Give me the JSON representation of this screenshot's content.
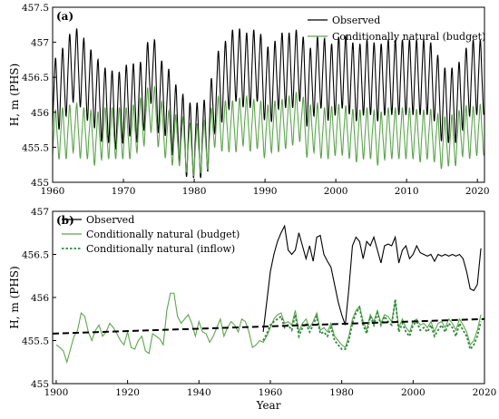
{
  "chart_data": [
    {
      "panel_label": "(a)",
      "type": "line",
      "xlabel": "",
      "ylabel": "H, m (PHS)",
      "xlim": [
        1960,
        2021
      ],
      "ylim": [
        455,
        457.5
      ],
      "xticks": [
        1960,
        1970,
        1980,
        1990,
        2000,
        2010,
        2020
      ],
      "yticks": [
        455,
        455.5,
        456,
        456.5,
        457,
        457.5
      ],
      "ytick_labels": [
        "455",
        "455.5",
        "456",
        "456.5",
        "457",
        "457.5"
      ],
      "legend_position": "top-right",
      "series": [
        {
          "name": "Observed",
          "color": "#000000",
          "seasonal_amplitude": 0.5,
          "annual_mean": [
            [
              1960,
              456.2
            ],
            [
              1961,
              456.3
            ],
            [
              1962,
              456.5
            ],
            [
              1963,
              456.7
            ],
            [
              1964,
              456.6
            ],
            [
              1965,
              456.4
            ],
            [
              1966,
              456.3
            ],
            [
              1967,
              456.1
            ],
            [
              1968,
              456.1
            ],
            [
              1969,
              456.0
            ],
            [
              1970,
              456.1
            ],
            [
              1971,
              456.2
            ],
            [
              1972,
              456.1
            ],
            [
              1973,
              456.3
            ],
            [
              1974,
              456.7
            ],
            [
              1975,
              456.2
            ],
            [
              1976,
              456.2
            ],
            [
              1977,
              455.9
            ],
            [
              1978,
              455.8
            ],
            [
              1979,
              455.6
            ],
            [
              1980,
              455.6
            ],
            [
              1981,
              455.6
            ],
            [
              1982,
              455.7
            ],
            [
              1983,
              456.3
            ],
            [
              1984,
              456.4
            ],
            [
              1985,
              456.6
            ],
            [
              1986,
              456.7
            ],
            [
              1987,
              456.6
            ],
            [
              1988,
              456.6
            ],
            [
              1989,
              456.7
            ],
            [
              1990,
              456.4
            ],
            [
              1991,
              456.4
            ],
            [
              1992,
              456.6
            ],
            [
              1993,
              456.6
            ],
            [
              1994,
              456.6
            ],
            [
              1995,
              456.7
            ],
            [
              1996,
              456.3
            ],
            [
              1997,
              456.5
            ],
            [
              1998,
              456.6
            ],
            [
              1999,
              456.4
            ],
            [
              2000,
              456.5
            ],
            [
              2001,
              456.6
            ],
            [
              2002,
              456.5
            ],
            [
              2003,
              456.4
            ],
            [
              2004,
              456.5
            ],
            [
              2005,
              456.5
            ],
            [
              2006,
              456.4
            ],
            [
              2007,
              456.5
            ],
            [
              2008,
              456.5
            ],
            [
              2009,
              456.5
            ],
            [
              2010,
              456.5
            ],
            [
              2011,
              456.5
            ],
            [
              2012,
              456.5
            ],
            [
              2013,
              456.5
            ],
            [
              2014,
              456.4
            ],
            [
              2015,
              456.1
            ],
            [
              2016,
              456.1
            ],
            [
              2017,
              456.1
            ],
            [
              2018,
              456.3
            ],
            [
              2019,
              456.5
            ],
            [
              2020,
              456.5
            ]
          ]
        },
        {
          "name": "Conditionally natural (budget)",
          "color": "#5aa84a",
          "seasonal_amplitude": 0.33,
          "annual_mean": [
            [
              1960,
              455.65
            ],
            [
              1961,
              455.7
            ],
            [
              1962,
              455.7
            ],
            [
              1963,
              455.8
            ],
            [
              1964,
              455.7
            ],
            [
              1965,
              455.7
            ],
            [
              1966,
              455.6
            ],
            [
              1967,
              455.7
            ],
            [
              1968,
              455.7
            ],
            [
              1969,
              455.7
            ],
            [
              1970,
              455.7
            ],
            [
              1971,
              455.7
            ],
            [
              1972,
              455.8
            ],
            [
              1973,
              455.9
            ],
            [
              1974,
              456.1
            ],
            [
              1975,
              455.85
            ],
            [
              1976,
              455.7
            ],
            [
              1977,
              455.6
            ],
            [
              1978,
              455.6
            ],
            [
              1979,
              455.5
            ],
            [
              1980,
              455.45
            ],
            [
              1981,
              455.5
            ],
            [
              1982,
              455.55
            ],
            [
              1983,
              455.9
            ],
            [
              1984,
              455.8
            ],
            [
              1985,
              455.8
            ],
            [
              1986,
              455.8
            ],
            [
              1987,
              455.9
            ],
            [
              1988,
              455.8
            ],
            [
              1989,
              455.85
            ],
            [
              1990,
              455.7
            ],
            [
              1991,
              455.8
            ],
            [
              1992,
              455.8
            ],
            [
              1993,
              455.85
            ],
            [
              1994,
              455.9
            ],
            [
              1995,
              455.95
            ],
            [
              1996,
              455.7
            ],
            [
              1997,
              455.8
            ],
            [
              1998,
              455.7
            ],
            [
              1999,
              455.7
            ],
            [
              2000,
              455.75
            ],
            [
              2001,
              455.75
            ],
            [
              2002,
              455.7
            ],
            [
              2003,
              455.65
            ],
            [
              2004,
              455.7
            ],
            [
              2005,
              455.7
            ],
            [
              2006,
              455.6
            ],
            [
              2007,
              455.7
            ],
            [
              2008,
              455.7
            ],
            [
              2009,
              455.7
            ],
            [
              2010,
              455.7
            ],
            [
              2011,
              455.7
            ],
            [
              2012,
              455.65
            ],
            [
              2013,
              455.7
            ],
            [
              2014,
              455.65
            ],
            [
              2015,
              455.55
            ],
            [
              2016,
              455.6
            ],
            [
              2017,
              455.6
            ],
            [
              2018,
              455.75
            ],
            [
              2019,
              455.7
            ],
            [
              2020,
              455.75
            ]
          ]
        }
      ]
    },
    {
      "panel_label": "(b)",
      "type": "line",
      "xlabel": "Year",
      "ylabel": "H, m (PHS)",
      "xlim": [
        1899,
        2020
      ],
      "ylim": [
        455,
        457
      ],
      "xticks": [
        1900,
        1920,
        1940,
        1960,
        1980,
        2000,
        2020
      ],
      "yticks": [
        455,
        455.5,
        456,
        456.5,
        457
      ],
      "ytick_labels": [
        "455",
        "455.5",
        "456",
        "456.5",
        "457"
      ],
      "legend_position": "top-left",
      "series": [
        {
          "name": "Observed",
          "color": "#000000",
          "x": [
            1958,
            1959,
            1960,
            1961,
            1962,
            1963,
            1964,
            1965,
            1966,
            1967,
            1968,
            1969,
            1970,
            1971,
            1972,
            1973,
            1974,
            1975,
            1976,
            1977,
            1978,
            1979,
            1980,
            1981,
            1982,
            1983,
            1984,
            1985,
            1986,
            1987,
            1988,
            1989,
            1990,
            1991,
            1992,
            1993,
            1994,
            1995,
            1996,
            1997,
            1998,
            1999,
            2000,
            2001,
            2002,
            2003,
            2004,
            2005,
            2006,
            2007,
            2008,
            2009,
            2010,
            2011,
            2012,
            2013,
            2014,
            2015,
            2016,
            2017,
            2018,
            2019
          ],
          "y": [
            455.6,
            455.95,
            456.3,
            456.5,
            456.65,
            456.75,
            456.83,
            456.55,
            456.5,
            456.55,
            456.75,
            456.6,
            456.45,
            456.6,
            456.42,
            456.7,
            456.72,
            456.5,
            456.42,
            456.35,
            456.15,
            455.95,
            455.8,
            455.68,
            456.1,
            456.6,
            456.7,
            456.65,
            456.45,
            456.65,
            456.6,
            456.7,
            456.55,
            456.4,
            456.6,
            456.62,
            456.6,
            456.7,
            456.4,
            456.55,
            456.6,
            456.45,
            456.5,
            456.6,
            456.52,
            456.5,
            456.48,
            456.5,
            456.42,
            456.5,
            456.48,
            456.5,
            456.48,
            456.5,
            456.48,
            456.5,
            456.45,
            456.3,
            456.1,
            456.08,
            456.15,
            456.57
          ]
        },
        {
          "name": "Conditionally natural (budget)",
          "color": "#5aa84a",
          "x": [
            1900,
            1901,
            1902,
            1903,
            1904,
            1905,
            1906,
            1907,
            1908,
            1909,
            1910,
            1911,
            1912,
            1913,
            1914,
            1915,
            1916,
            1917,
            1918,
            1919,
            1920,
            1921,
            1922,
            1923,
            1924,
            1925,
            1926,
            1927,
            1928,
            1929,
            1930,
            1931,
            1932,
            1933,
            1934,
            1935,
            1936,
            1937,
            1938,
            1939,
            1940,
            1941,
            1942,
            1943,
            1944,
            1945,
            1946,
            1947,
            1948,
            1949,
            1950,
            1951,
            1952,
            1953,
            1954,
            1955,
            1956,
            1957,
            1958,
            1959,
            1960,
            1961,
            1962,
            1963,
            1964,
            1965,
            1966,
            1967,
            1968,
            1969,
            1970,
            1971,
            1972,
            1973,
            1974,
            1975,
            1976,
            1977,
            1978,
            1979,
            1980,
            1981,
            1982,
            1983,
            1984,
            1985,
            1986,
            1987,
            1988,
            1989,
            1990,
            1991,
            1992,
            1993,
            1994,
            1995,
            1996,
            1997,
            1998,
            1999,
            2000,
            2001,
            2002,
            2003,
            2004,
            2005,
            2006,
            2007,
            2008,
            2009,
            2010,
            2011,
            2012,
            2013,
            2014,
            2015,
            2016,
            2017,
            2018,
            2019
          ],
          "y": [
            455.45,
            455.42,
            455.38,
            455.25,
            455.4,
            455.55,
            455.62,
            455.82,
            455.78,
            455.6,
            455.5,
            455.62,
            455.68,
            455.55,
            455.6,
            455.7,
            455.65,
            455.58,
            455.5,
            455.45,
            455.6,
            455.42,
            455.4,
            455.5,
            455.55,
            455.38,
            455.35,
            455.58,
            455.55,
            455.52,
            455.45,
            455.85,
            456.05,
            456.05,
            455.78,
            455.7,
            455.75,
            455.8,
            455.7,
            455.55,
            455.72,
            455.6,
            455.58,
            455.48,
            455.55,
            455.65,
            455.75,
            455.55,
            455.65,
            455.72,
            455.68,
            455.6,
            455.75,
            455.72,
            455.6,
            455.42,
            455.45,
            455.5,
            455.48,
            455.55,
            455.65,
            455.75,
            455.8,
            455.82,
            455.7,
            455.72,
            455.68,
            455.85,
            455.6,
            455.7,
            455.75,
            455.65,
            455.72,
            455.82,
            455.62,
            455.65,
            455.6,
            455.7,
            455.55,
            455.5,
            455.45,
            455.42,
            455.55,
            455.75,
            455.85,
            455.9,
            455.72,
            455.62,
            455.8,
            455.72,
            455.85,
            455.7,
            455.8,
            455.78,
            455.72,
            455.95,
            455.65,
            455.75,
            455.65,
            455.6,
            455.72,
            455.75,
            455.68,
            455.7,
            455.65,
            455.72,
            455.6,
            455.7,
            455.72,
            455.65,
            455.75,
            455.7,
            455.62,
            455.75,
            455.68,
            455.6,
            455.45,
            455.5,
            455.62,
            455.8
          ]
        },
        {
          "name": "Conditionally natural (inflow)",
          "color": "#2e8b3a",
          "dashed": true,
          "x": [
            1958,
            1959,
            1960,
            1961,
            1962,
            1963,
            1964,
            1965,
            1966,
            1967,
            1968,
            1969,
            1970,
            1971,
            1972,
            1973,
            1974,
            1975,
            1976,
            1977,
            1978,
            1979,
            1980,
            1981,
            1982,
            1983,
            1984,
            1985,
            1986,
            1987,
            1988,
            1989,
            1990,
            1991,
            1992,
            1993,
            1994,
            1995,
            1996,
            1997,
            1998,
            1999,
            2000,
            2001,
            2002,
            2003,
            2004,
            2005,
            2006,
            2007,
            2008,
            2009,
            2010,
            2011,
            2012,
            2013,
            2014,
            2015,
            2016,
            2017,
            2018,
            2019
          ],
          "y": [
            455.5,
            455.58,
            455.68,
            455.72,
            455.75,
            455.78,
            455.65,
            455.68,
            455.62,
            455.8,
            455.55,
            455.65,
            455.7,
            455.6,
            455.68,
            455.78,
            455.58,
            455.6,
            455.55,
            455.65,
            455.5,
            455.45,
            455.4,
            455.4,
            455.5,
            455.7,
            455.82,
            455.88,
            455.68,
            455.58,
            455.78,
            455.68,
            455.82,
            455.68,
            455.78,
            455.72,
            455.68,
            455.98,
            455.6,
            455.7,
            455.6,
            455.55,
            455.68,
            455.72,
            455.62,
            455.65,
            455.6,
            455.68,
            455.55,
            455.62,
            455.68,
            455.6,
            455.7,
            455.65,
            455.55,
            455.7,
            455.62,
            455.55,
            455.4,
            455.45,
            455.55,
            455.72
          ]
        }
      ],
      "trend_line": {
        "style": "dashed",
        "color": "#000000",
        "x": [
          1899,
          2020
        ],
        "y": [
          455.58,
          455.75
        ]
      }
    }
  ]
}
